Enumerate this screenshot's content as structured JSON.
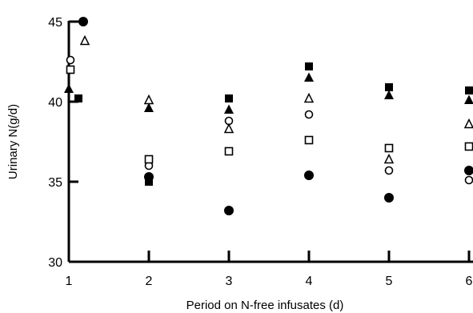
{
  "chart_data": {
    "type": "scatter",
    "xlabel": "Period on N-free infusates (d)",
    "ylabel": "Urinary N(g/d)",
    "xlim": [
      1,
      6
    ],
    "ylim": [
      30,
      45
    ],
    "xticks": [
      "1",
      "2",
      "3",
      "4",
      "5",
      "6"
    ],
    "yticks": [
      "30",
      "35",
      "40",
      "45"
    ],
    "grid": false,
    "legend": "none",
    "series": [
      {
        "marker": "filled-circle",
        "points": [
          [
            1.18,
            45.0
          ],
          [
            2.0,
            35.3
          ],
          [
            3.0,
            33.2
          ],
          [
            4.0,
            35.4
          ],
          [
            5.0,
            34.0
          ],
          [
            6.0,
            35.7
          ]
        ]
      },
      {
        "marker": "open-circle",
        "points": [
          [
            1.02,
            42.6
          ],
          [
            2.0,
            36.0
          ],
          [
            3.0,
            38.8
          ],
          [
            4.0,
            39.2
          ],
          [
            5.0,
            35.7
          ],
          [
            6.0,
            35.1
          ]
        ]
      },
      {
        "marker": "filled-square",
        "points": [
          [
            1.12,
            40.2
          ],
          [
            2.0,
            35.0
          ],
          [
            3.0,
            40.2
          ],
          [
            4.0,
            42.2
          ],
          [
            5.0,
            40.9
          ],
          [
            6.0,
            40.7
          ]
        ]
      },
      {
        "marker": "open-square",
        "points": [
          [
            1.02,
            42.0
          ],
          [
            2.0,
            36.4
          ],
          [
            3.0,
            36.9
          ],
          [
            4.0,
            37.6
          ],
          [
            5.0,
            37.1
          ],
          [
            6.0,
            37.2
          ]
        ]
      },
      {
        "marker": "filled-triangle",
        "points": [
          [
            1.0,
            40.8
          ],
          [
            2.0,
            39.6
          ],
          [
            3.0,
            39.5
          ],
          [
            4.0,
            41.5
          ],
          [
            5.0,
            40.4
          ],
          [
            6.0,
            40.1
          ]
        ]
      },
      {
        "marker": "open-triangle",
        "points": [
          [
            1.2,
            43.8
          ],
          [
            2.0,
            40.1
          ],
          [
            3.0,
            38.3
          ],
          [
            4.0,
            40.2
          ],
          [
            5.0,
            36.4
          ],
          [
            6.0,
            38.6
          ]
        ]
      }
    ]
  }
}
